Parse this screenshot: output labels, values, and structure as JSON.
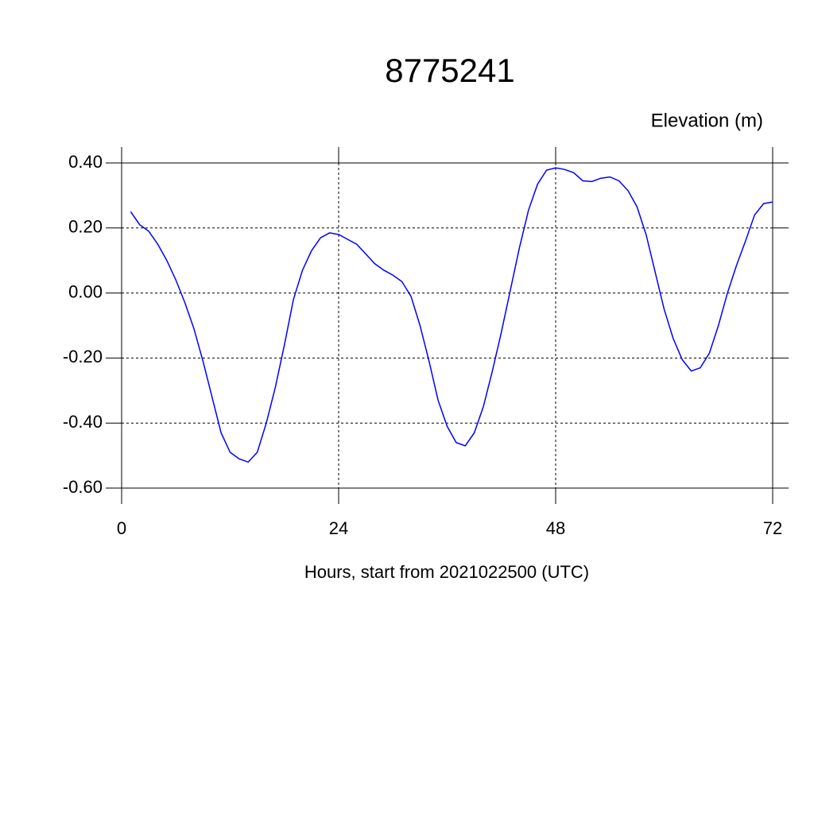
{
  "chart_data": {
    "type": "line",
    "title": "8775241",
    "ylabel": "Elevation (m)",
    "xlabel": "Hours, start from 2021022500 (UTC)",
    "x": [
      1,
      2,
      3,
      4,
      5,
      6,
      7,
      8,
      9,
      10,
      11,
      12,
      13,
      14,
      15,
      16,
      17,
      18,
      19,
      20,
      21,
      22,
      23,
      24,
      25,
      26,
      27,
      28,
      29,
      30,
      31,
      32,
      33,
      34,
      35,
      36,
      37,
      38,
      39,
      40,
      41,
      42,
      43,
      44,
      45,
      46,
      47,
      48,
      49,
      50,
      51,
      52,
      53,
      54,
      55,
      56,
      57,
      58,
      59,
      60,
      61,
      62,
      63,
      64,
      65,
      66,
      67,
      68,
      69,
      70,
      71,
      72
    ],
    "series": [
      {
        "color": "#0000ff",
        "values": [
          0.25,
          0.21,
          0.19,
          0.15,
          0.1,
          0.04,
          -0.03,
          -0.11,
          -0.21,
          -0.32,
          -0.43,
          -0.49,
          -0.51,
          -0.52,
          -0.49,
          -0.4,
          -0.29,
          -0.16,
          -0.02,
          0.07,
          0.13,
          0.17,
          0.185,
          0.18,
          0.165,
          0.15,
          0.12,
          0.09,
          0.07,
          0.055,
          0.035,
          -0.01,
          -0.1,
          -0.21,
          -0.33,
          -0.41,
          -0.46,
          -0.47,
          -0.43,
          -0.35,
          -0.24,
          -0.12,
          0.01,
          0.14,
          0.255,
          0.335,
          0.378,
          0.385,
          0.38,
          0.37,
          0.345,
          0.343,
          0.353,
          0.357,
          0.345,
          0.315,
          0.265,
          0.18,
          0.065,
          -0.05,
          -0.14,
          -0.205,
          -0.24,
          -0.23,
          -0.185,
          -0.1,
          0.0,
          0.085,
          0.16,
          0.24,
          0.275,
          0.28
        ]
      }
    ],
    "xlim": [
      0,
      72
    ],
    "xticks": [
      0,
      24,
      48,
      72
    ],
    "ylim": [
      -0.6,
      0.4
    ],
    "yticks": [
      {
        "value": -0.6,
        "label": "-0.60"
      },
      {
        "value": -0.4,
        "label": "-0.40"
      },
      {
        "value": -0.2,
        "label": "-0.20"
      },
      {
        "value": 0,
        "label": "0.00"
      },
      {
        "value": 0.2,
        "label": "0.20"
      },
      {
        "value": 0.4,
        "label": "0.40"
      }
    ],
    "grid": true
  }
}
